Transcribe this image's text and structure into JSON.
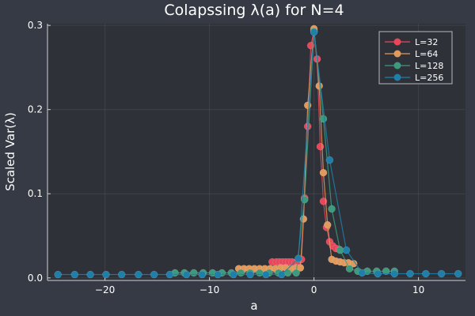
{
  "chart_data": {
    "type": "scatter",
    "title": "Colapssing λ(a) for N=4",
    "xlabel": "a",
    "ylabel": "Scaled Var(λ)",
    "xlim": [
      -25.5,
      14.5
    ],
    "ylim": [
      -0.003,
      0.302
    ],
    "xticks": [
      -20,
      -10,
      0,
      10
    ],
    "yticks": [
      0.0,
      0.1,
      0.2,
      0.3
    ],
    "ytick_labels": [
      "0.0",
      "0.1",
      "0.2",
      "0.3"
    ],
    "grid": true,
    "legend_position": "top-right",
    "series": [
      {
        "name": "L=32",
        "color": "#e8465b",
        "points": [
          [
            -4.0,
            0.019
          ],
          [
            -3.6,
            0.019
          ],
          [
            -3.3,
            0.019
          ],
          [
            -3.0,
            0.019
          ],
          [
            -2.7,
            0.019
          ],
          [
            -2.4,
            0.019
          ],
          [
            -2.1,
            0.019
          ],
          [
            -1.8,
            0.018
          ],
          [
            -1.5,
            0.02
          ],
          [
            -1.2,
            0.022
          ],
          [
            -0.9,
            0.095
          ],
          [
            -0.6,
            0.18
          ],
          [
            -0.3,
            0.276
          ],
          [
            0.0,
            0.293
          ],
          [
            0.3,
            0.26
          ],
          [
            0.6,
            0.156
          ],
          [
            0.9,
            0.091
          ],
          [
            1.2,
            0.06
          ],
          [
            1.5,
            0.043
          ],
          [
            1.8,
            0.038
          ],
          [
            2.1,
            0.035
          ],
          [
            2.4,
            0.034
          ]
        ]
      },
      {
        "name": "L=64",
        "color": "#e19a5c",
        "points": [
          [
            -7.2,
            0.011
          ],
          [
            -6.7,
            0.011
          ],
          [
            -6.2,
            0.011
          ],
          [
            -5.7,
            0.011
          ],
          [
            -5.2,
            0.011
          ],
          [
            -4.7,
            0.011
          ],
          [
            -4.2,
            0.011
          ],
          [
            -3.7,
            0.011
          ],
          [
            -3.2,
            0.012
          ],
          [
            -2.7,
            0.012
          ],
          [
            -2.2,
            0.011
          ],
          [
            -1.7,
            0.012
          ],
          [
            -1.3,
            0.012
          ],
          [
            -1.0,
            0.07
          ],
          [
            -0.6,
            0.205
          ],
          [
            0.0,
            0.296
          ],
          [
            0.5,
            0.228
          ],
          [
            0.9,
            0.125
          ],
          [
            1.3,
            0.063
          ],
          [
            1.7,
            0.022
          ],
          [
            2.1,
            0.02
          ],
          [
            2.5,
            0.019
          ],
          [
            2.9,
            0.018
          ],
          [
            3.3,
            0.018
          ],
          [
            3.8,
            0.017
          ]
        ]
      },
      {
        "name": "L=128",
        "color": "#3e9a7c",
        "points": [
          [
            -13.3,
            0.006
          ],
          [
            -12.4,
            0.006
          ],
          [
            -11.5,
            0.006
          ],
          [
            -10.6,
            0.006
          ],
          [
            -9.7,
            0.006
          ],
          [
            -8.8,
            0.006
          ],
          [
            -7.9,
            0.006
          ],
          [
            -7.0,
            0.006
          ],
          [
            -6.1,
            0.006
          ],
          [
            -5.2,
            0.006
          ],
          [
            -4.3,
            0.006
          ],
          [
            -3.4,
            0.006
          ],
          [
            -2.5,
            0.006
          ],
          [
            -1.7,
            0.006
          ],
          [
            -0.9,
            0.093
          ],
          [
            0.0,
            0.293
          ],
          [
            0.9,
            0.189
          ],
          [
            1.7,
            0.082
          ],
          [
            2.5,
            0.033
          ],
          [
            3.4,
            0.011
          ],
          [
            4.2,
            0.008
          ],
          [
            5.1,
            0.008
          ],
          [
            6.0,
            0.008
          ],
          [
            6.9,
            0.008
          ],
          [
            7.7,
            0.008
          ]
        ]
      },
      {
        "name": "L=256",
        "color": "#1f7fa8",
        "points": [
          [
            -24.5,
            0.004
          ],
          [
            -22.9,
            0.004
          ],
          [
            -21.4,
            0.004
          ],
          [
            -19.9,
            0.004
          ],
          [
            -18.4,
            0.004
          ],
          [
            -16.8,
            0.004
          ],
          [
            -15.3,
            0.004
          ],
          [
            -13.8,
            0.004
          ],
          [
            -12.2,
            0.004
          ],
          [
            -10.7,
            0.004
          ],
          [
            -9.2,
            0.004
          ],
          [
            -7.7,
            0.004
          ],
          [
            -6.1,
            0.004
          ],
          [
            -4.6,
            0.004
          ],
          [
            -3.1,
            0.004
          ],
          [
            -1.5,
            0.023
          ],
          [
            0.0,
            0.292
          ],
          [
            1.5,
            0.14
          ],
          [
            3.1,
            0.033
          ],
          [
            4.6,
            0.006
          ],
          [
            6.1,
            0.005
          ],
          [
            7.7,
            0.005
          ],
          [
            9.2,
            0.005
          ],
          [
            10.7,
            0.005
          ],
          [
            12.2,
            0.005
          ],
          [
            13.8,
            0.005
          ]
        ]
      }
    ]
  }
}
